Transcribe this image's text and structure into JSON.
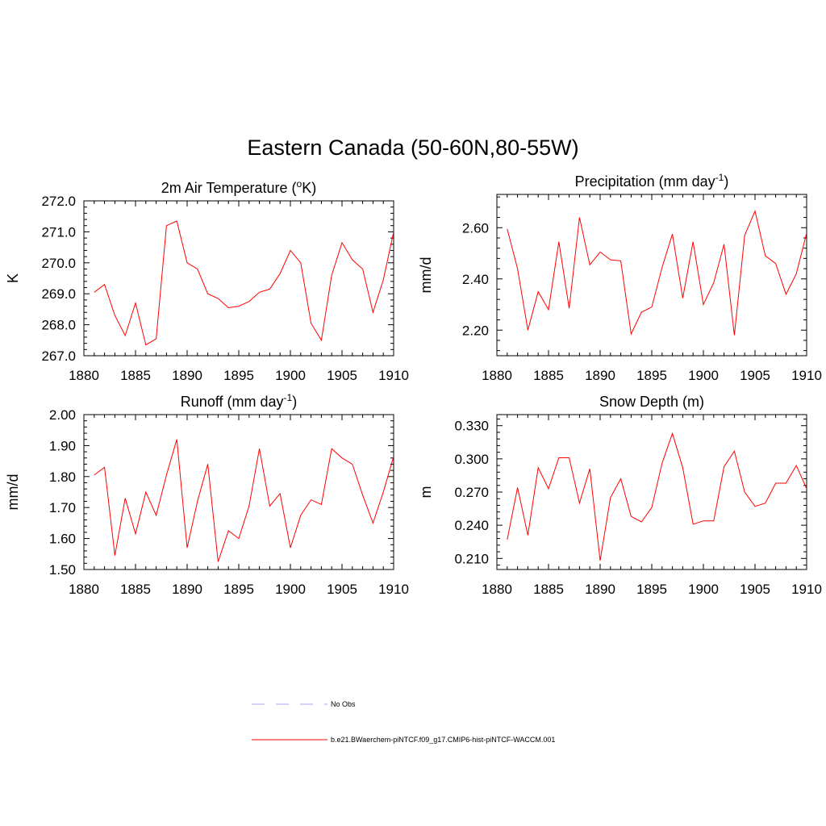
{
  "figure": {
    "title": "Eastern Canada (50-60N,80-55W)"
  },
  "legend": {
    "items": [
      {
        "label": "No Obs",
        "color": "#aaaaee",
        "dash": true
      },
      {
        "label": "b.e21.BWaerchem-piNTCF.f09_g17.CMIP6-hist-piNTCF-WACCM.001",
        "color": "#ff0000",
        "dash": false
      }
    ]
  },
  "chart_data": [
    {
      "type": "line",
      "title": "2m Air Temperature (°K)",
      "title_main": "2m Air Temperature (",
      "title_sup": "o",
      "title_tail": "K)",
      "ylabel": "K",
      "xlim": [
        1880,
        1910
      ],
      "ylim": [
        267.0,
        272.0
      ],
      "xticks": [
        1880,
        1885,
        1890,
        1895,
        1900,
        1905,
        1910
      ],
      "yticks": [
        267.0,
        268.0,
        269.0,
        270.0,
        271.0,
        272.0
      ],
      "ytick_labels": [
        "267.0",
        "268.0",
        "269.0",
        "270.0",
        "271.0",
        "272.0"
      ],
      "series": [
        {
          "color": "#ff0000",
          "x": [
            1881,
            1882,
            1883,
            1884,
            1885,
            1886,
            1887,
            1888,
            1889,
            1890,
            1891,
            1892,
            1893,
            1894,
            1895,
            1896,
            1897,
            1898,
            1899,
            1900,
            1901,
            1902,
            1903,
            1904,
            1905,
            1906,
            1907,
            1908,
            1909,
            1910
          ],
          "values": [
            269.05,
            269.3,
            268.3,
            267.65,
            268.7,
            267.35,
            267.55,
            271.2,
            271.35,
            270.0,
            269.8,
            269.0,
            268.85,
            268.55,
            268.6,
            268.75,
            269.05,
            269.15,
            269.65,
            270.4,
            270.0,
            268.05,
            267.5,
            269.6,
            270.65,
            270.1,
            269.8,
            268.4,
            269.45,
            271.0
          ]
        }
      ]
    },
    {
      "type": "line",
      "title": "Precipitation (mm day-1)",
      "title_main": "Precipitation (mm day",
      "title_sup": "-1",
      "title_tail": ")",
      "ylabel": "mm/d",
      "xlim": [
        1880,
        1910
      ],
      "ylim": [
        2.1,
        2.73
      ],
      "xticks": [
        1880,
        1885,
        1890,
        1895,
        1900,
        1905,
        1910
      ],
      "yticks": [
        2.2,
        2.4,
        2.6
      ],
      "ytick_labels": [
        "2.20",
        "2.40",
        "2.60"
      ],
      "series": [
        {
          "color": "#ff0000",
          "x": [
            1881,
            1882,
            1883,
            1884,
            1885,
            1886,
            1887,
            1888,
            1889,
            1890,
            1891,
            1892,
            1893,
            1894,
            1895,
            1896,
            1897,
            1898,
            1899,
            1900,
            1901,
            1902,
            1903,
            1904,
            1905,
            1906,
            1907,
            1908,
            1909,
            1910
          ],
          "values": [
            2.595,
            2.44,
            2.2,
            2.35,
            2.28,
            2.545,
            2.285,
            2.64,
            2.455,
            2.505,
            2.475,
            2.47,
            2.185,
            2.27,
            2.29,
            2.445,
            2.575,
            2.325,
            2.545,
            2.3,
            2.385,
            2.535,
            2.18,
            2.57,
            2.665,
            2.49,
            2.46,
            2.34,
            2.42,
            2.58
          ]
        }
      ]
    },
    {
      "type": "line",
      "title": "Runoff (mm day-1)",
      "title_main": "Runoff (mm day",
      "title_sup": "-1",
      "title_tail": ")",
      "ylabel": "mm/d",
      "xlim": [
        1880,
        1910
      ],
      "ylim": [
        1.5,
        2.0
      ],
      "xticks": [
        1880,
        1885,
        1890,
        1895,
        1900,
        1905,
        1910
      ],
      "yticks": [
        1.5,
        1.6,
        1.7,
        1.8,
        1.9,
        2.0
      ],
      "ytick_labels": [
        "1.50",
        "1.60",
        "1.70",
        "1.80",
        "1.90",
        "2.00"
      ],
      "series": [
        {
          "color": "#ff0000",
          "x": [
            1881,
            1882,
            1883,
            1884,
            1885,
            1886,
            1887,
            1888,
            1889,
            1890,
            1891,
            1892,
            1893,
            1894,
            1895,
            1896,
            1897,
            1898,
            1899,
            1900,
            1901,
            1902,
            1903,
            1904,
            1905,
            1906,
            1907,
            1908,
            1909,
            1910
          ],
          "values": [
            1.805,
            1.83,
            1.545,
            1.73,
            1.615,
            1.75,
            1.675,
            1.805,
            1.92,
            1.57,
            1.72,
            1.84,
            1.525,
            1.625,
            1.6,
            1.705,
            1.89,
            1.705,
            1.745,
            1.57,
            1.675,
            1.725,
            1.71,
            1.89,
            1.86,
            1.84,
            1.74,
            1.65,
            1.75,
            1.865
          ]
        }
      ]
    },
    {
      "type": "line",
      "title": "Snow Depth (m)",
      "title_main": "Snow Depth (m)",
      "title_sup": "",
      "title_tail": "",
      "ylabel": "m",
      "xlim": [
        1880,
        1910
      ],
      "ylim": [
        0.2,
        0.34
      ],
      "xticks": [
        1880,
        1885,
        1890,
        1895,
        1900,
        1905,
        1910
      ],
      "yticks": [
        0.21,
        0.24,
        0.27,
        0.3,
        0.33
      ],
      "ytick_labels": [
        "0.210",
        "0.240",
        "0.270",
        "0.300",
        "0.330"
      ],
      "series": [
        {
          "color": "#ff0000",
          "x": [
            1881,
            1882,
            1883,
            1884,
            1885,
            1886,
            1887,
            1888,
            1889,
            1890,
            1891,
            1892,
            1893,
            1894,
            1895,
            1896,
            1897,
            1898,
            1899,
            1900,
            1901,
            1902,
            1903,
            1904,
            1905,
            1906,
            1907,
            1908,
            1909,
            1910
          ],
          "values": [
            0.227,
            0.274,
            0.231,
            0.292,
            0.273,
            0.301,
            0.301,
            0.26,
            0.291,
            0.208,
            0.265,
            0.282,
            0.248,
            0.243,
            0.256,
            0.296,
            0.323,
            0.292,
            0.241,
            0.244,
            0.244,
            0.293,
            0.307,
            0.27,
            0.257,
            0.26,
            0.278,
            0.278,
            0.294,
            0.273
          ]
        }
      ]
    }
  ]
}
